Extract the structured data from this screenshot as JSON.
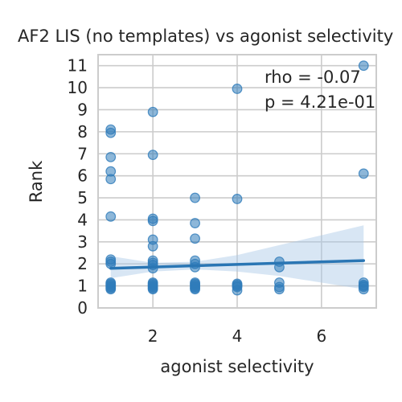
{
  "chart_data": {
    "type": "scatter",
    "title": "AF2 LIS (no templates) vs agonist selectivity",
    "xlabel": "agonist selectivity",
    "ylabel": "Rank",
    "xlim": [
      0.7,
      7.3
    ],
    "ylim": [
      0,
      11.5
    ],
    "xticks": [
      2,
      4,
      6
    ],
    "yticks": [
      0,
      1,
      2,
      3,
      4,
      5,
      6,
      7,
      8,
      9,
      10,
      11
    ],
    "grid": true,
    "annotations": [
      "rho = -0.07",
      "p = 4.21e-01"
    ],
    "colors": {
      "point": "#2f7cba",
      "line": "#2a76b4",
      "band": "#a9c8e6",
      "grid": "#cccccc",
      "spine": "#cccccc"
    },
    "points": [
      {
        "x": 1,
        "y": 0.85
      },
      {
        "x": 1,
        "y": 0.9
      },
      {
        "x": 1,
        "y": 0.95
      },
      {
        "x": 1,
        "y": 1.0
      },
      {
        "x": 1,
        "y": 1.05
      },
      {
        "x": 1,
        "y": 1.1
      },
      {
        "x": 1,
        "y": 1.15
      },
      {
        "x": 1,
        "y": 2.0
      },
      {
        "x": 1,
        "y": 2.1
      },
      {
        "x": 1,
        "y": 2.2
      },
      {
        "x": 1,
        "y": 4.15
      },
      {
        "x": 1,
        "y": 5.85
      },
      {
        "x": 1,
        "y": 6.2
      },
      {
        "x": 1,
        "y": 6.85
      },
      {
        "x": 1,
        "y": 7.95
      },
      {
        "x": 1,
        "y": 8.1
      },
      {
        "x": 2,
        "y": 0.85
      },
      {
        "x": 2,
        "y": 0.9
      },
      {
        "x": 2,
        "y": 0.95
      },
      {
        "x": 2,
        "y": 1.0
      },
      {
        "x": 2,
        "y": 1.05
      },
      {
        "x": 2,
        "y": 1.1
      },
      {
        "x": 2,
        "y": 1.15
      },
      {
        "x": 2,
        "y": 1.8
      },
      {
        "x": 2,
        "y": 1.95
      },
      {
        "x": 2,
        "y": 2.05
      },
      {
        "x": 2,
        "y": 2.15
      },
      {
        "x": 2,
        "y": 2.8
      },
      {
        "x": 2,
        "y": 3.1
      },
      {
        "x": 2,
        "y": 3.95
      },
      {
        "x": 2,
        "y": 4.05
      },
      {
        "x": 2,
        "y": 6.95
      },
      {
        "x": 2,
        "y": 8.9
      },
      {
        "x": 3,
        "y": 0.85
      },
      {
        "x": 3,
        "y": 0.9
      },
      {
        "x": 3,
        "y": 0.95
      },
      {
        "x": 3,
        "y": 1.0
      },
      {
        "x": 3,
        "y": 1.05
      },
      {
        "x": 3,
        "y": 1.1
      },
      {
        "x": 3,
        "y": 1.15
      },
      {
        "x": 3,
        "y": 1.85
      },
      {
        "x": 3,
        "y": 2.0
      },
      {
        "x": 3,
        "y": 2.15
      },
      {
        "x": 3,
        "y": 3.15
      },
      {
        "x": 3,
        "y": 3.85
      },
      {
        "x": 3,
        "y": 5.0
      },
      {
        "x": 4,
        "y": 0.8
      },
      {
        "x": 4,
        "y": 0.95
      },
      {
        "x": 4,
        "y": 1.0
      },
      {
        "x": 4,
        "y": 1.05
      },
      {
        "x": 4,
        "y": 1.1
      },
      {
        "x": 4,
        "y": 4.95
      },
      {
        "x": 4,
        "y": 9.95
      },
      {
        "x": 5,
        "y": 0.85
      },
      {
        "x": 5,
        "y": 0.95
      },
      {
        "x": 5,
        "y": 1.15
      },
      {
        "x": 5,
        "y": 1.85
      },
      {
        "x": 5,
        "y": 2.1
      },
      {
        "x": 7,
        "y": 0.85
      },
      {
        "x": 7,
        "y": 0.95
      },
      {
        "x": 7,
        "y": 1.0
      },
      {
        "x": 7,
        "y": 1.05
      },
      {
        "x": 7,
        "y": 1.15
      },
      {
        "x": 7,
        "y": 6.1
      },
      {
        "x": 7,
        "y": 11.0
      }
    ],
    "regression": {
      "x": [
        1,
        7
      ],
      "y": [
        1.8,
        2.15
      ]
    },
    "confidence_band": {
      "x": [
        1,
        2,
        3,
        4,
        5,
        6,
        7
      ],
      "upper": [
        2.35,
        2.05,
        2.1,
        2.4,
        2.85,
        3.3,
        3.75
      ],
      "lower": [
        1.35,
        1.65,
        1.75,
        1.65,
        1.45,
        1.15,
        0.85
      ]
    }
  }
}
